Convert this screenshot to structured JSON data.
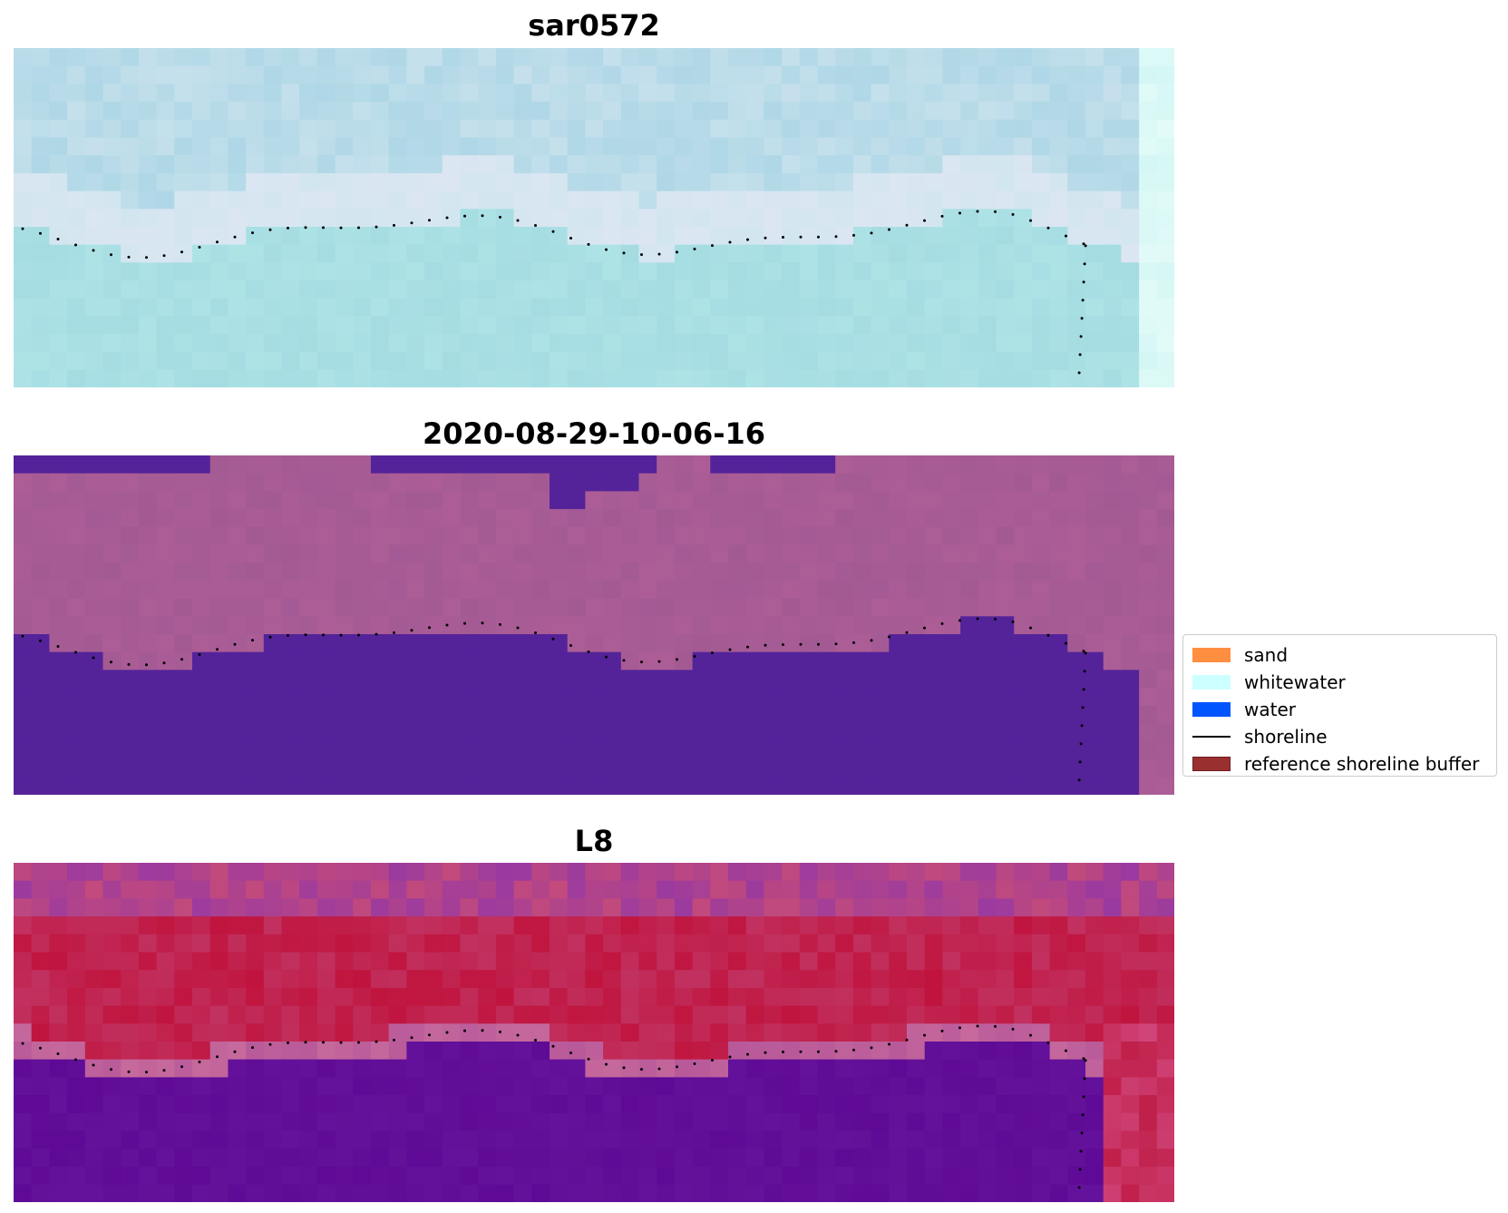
{
  "panels": [
    {
      "title": "sar0572",
      "style": "sar"
    },
    {
      "title": "2020-08-29-10-06-16",
      "style": "classified"
    },
    {
      "title": "L8",
      "style": "index"
    }
  ],
  "legend": {
    "items": [
      {
        "label": "sand",
        "color": "#ff8f40",
        "kind": "patch"
      },
      {
        "label": "whitewater",
        "color": "#ccffff",
        "kind": "patch"
      },
      {
        "label": "water",
        "color": "#0055ff",
        "kind": "patch"
      },
      {
        "label": "shoreline",
        "color": "#000000",
        "kind": "line"
      },
      {
        "label": "reference shoreline buffer",
        "color": "#99302f",
        "kind": "patch"
      }
    ]
  },
  "colors": {
    "sar_top": "#a6d3e4",
    "sar_band": "#d2e6ef",
    "sar_bottom": "#a4dce2",
    "classified_land": "#a35a93",
    "classified_water": "#54239a",
    "index_top": "#c24a7c",
    "index_mid": "#c0143e",
    "index_bottom": "#5e0a96",
    "shoreline_points": "#000000"
  }
}
